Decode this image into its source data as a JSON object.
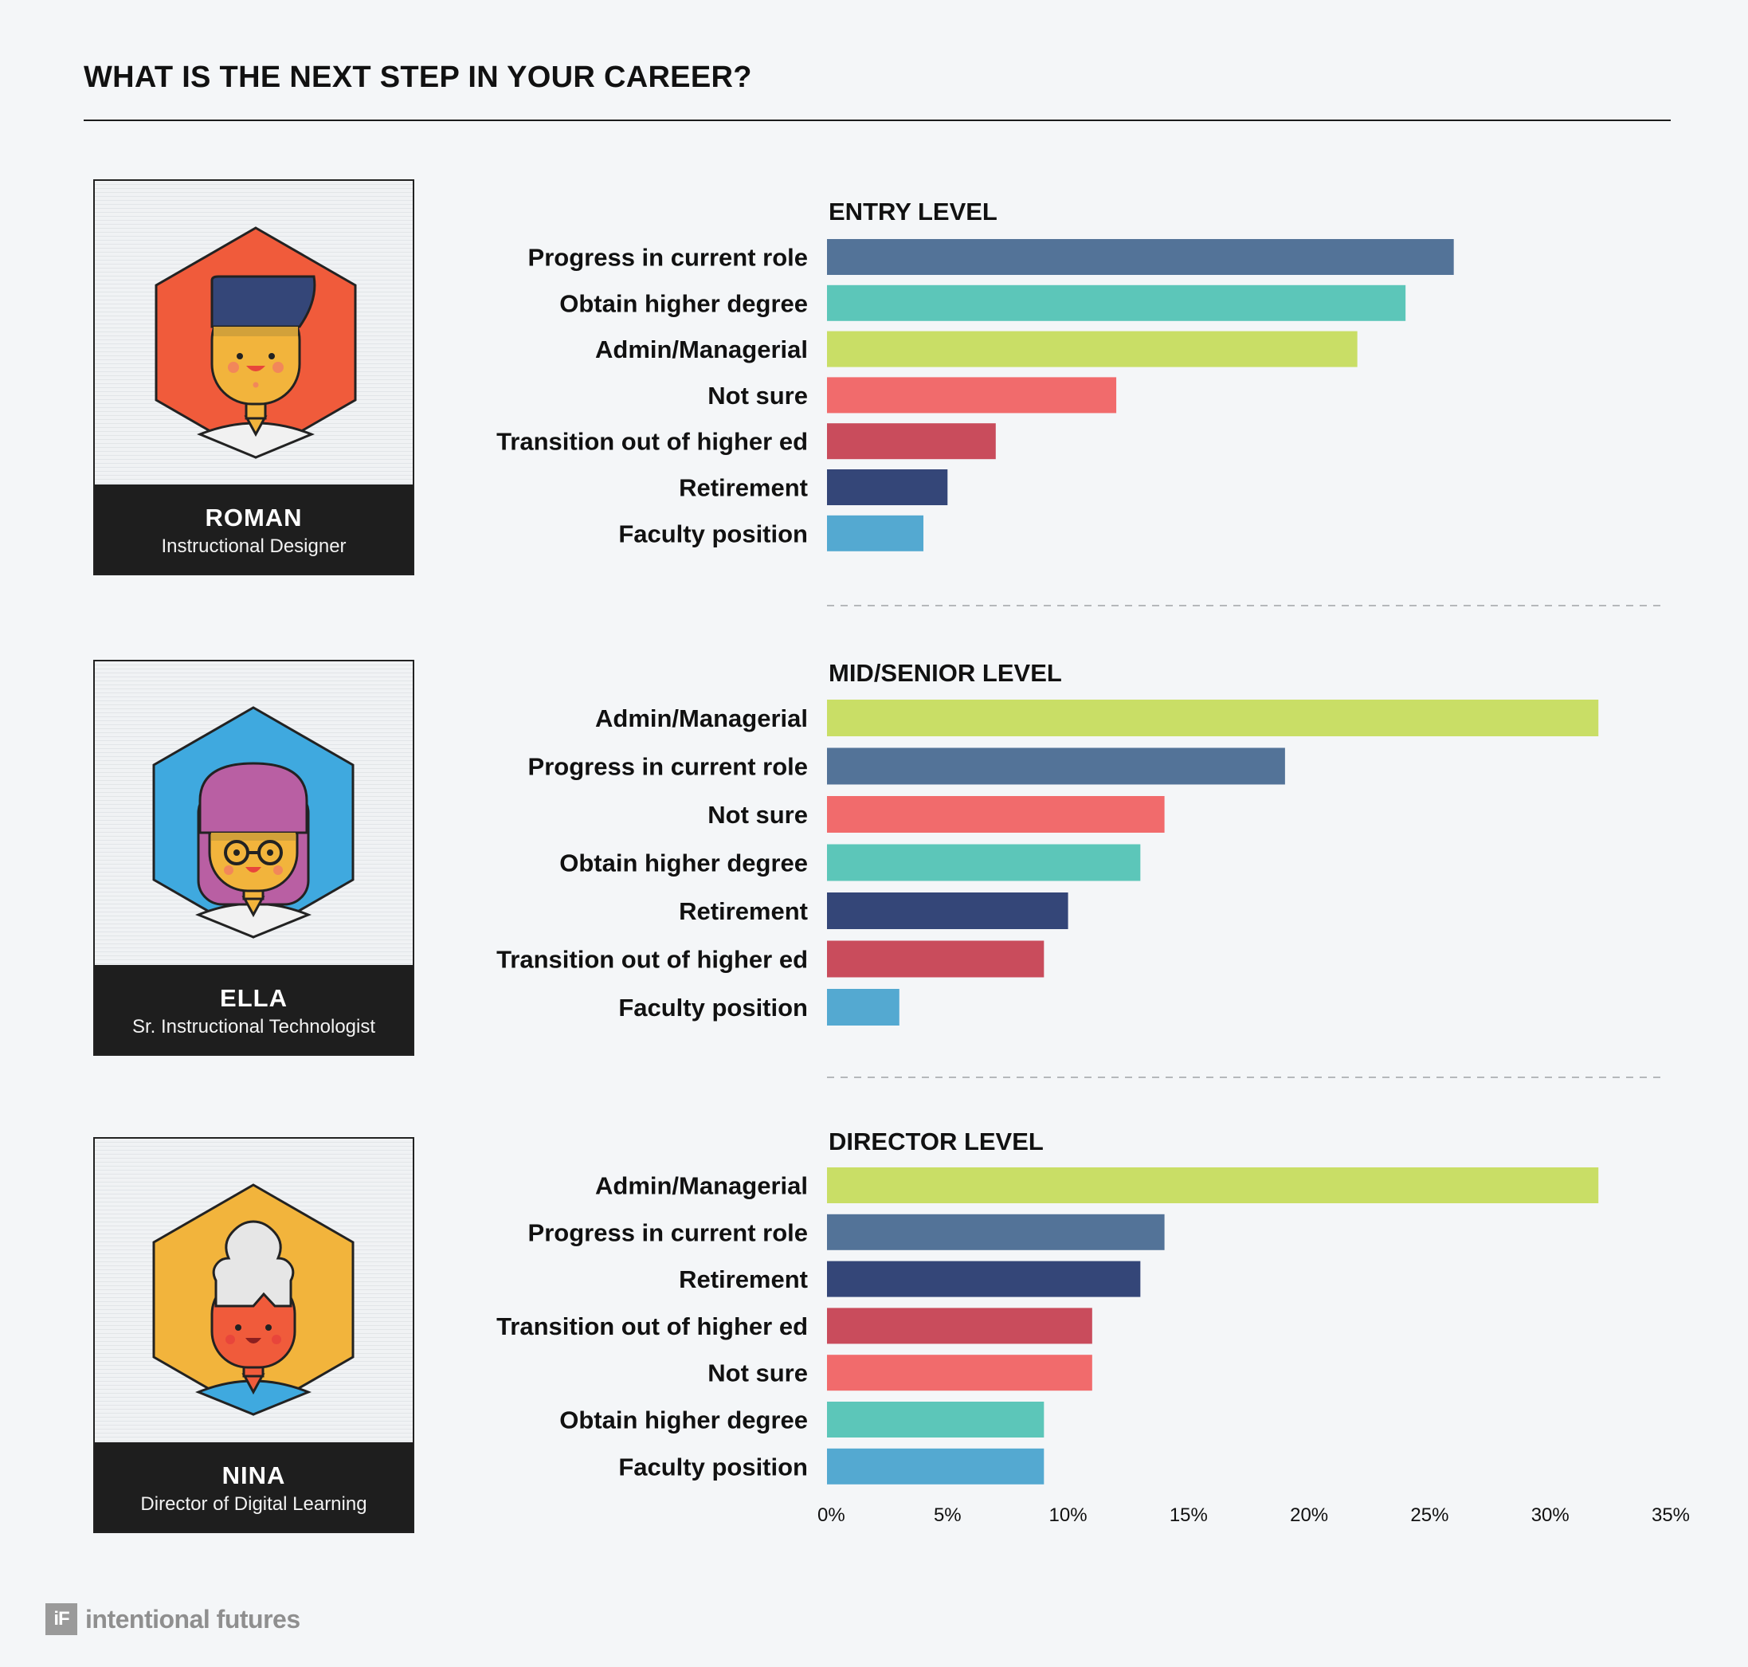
{
  "header": {
    "title": "WHAT IS THE NEXT STEP IN YOUR CAREER?"
  },
  "personas": [
    {
      "name": "ROMAN",
      "role": "Instructional Designer",
      "hex_color": "#f05b3b",
      "icon": "man-avatar-icon"
    },
    {
      "name": "ELLA",
      "role": "Sr. Instructional Technologist",
      "hex_color": "#3fa9df",
      "icon": "woman-with-glasses-avatar-icon"
    },
    {
      "name": "NINA",
      "role": "Director of Digital Learning",
      "hex_color": "#f2b43c",
      "icon": "woman-with-white-hair-avatar-icon"
    }
  ],
  "chart_data": [
    {
      "type": "bar",
      "orientation": "horizontal",
      "title": "ENTRY LEVEL",
      "categories": [
        "Progress in current role",
        "Obtain higher degree",
        "Admin/Managerial",
        "Not sure",
        "Transition out of higher ed",
        "Retirement",
        "Faculty position"
      ],
      "values": [
        26,
        24,
        22,
        12,
        7,
        5,
        4
      ],
      "colors": [
        "#537398",
        "#5cc6b9",
        "#c9de66",
        "#f16b6c",
        "#c94c5c",
        "#344678",
        "#54a9d1"
      ]
    },
    {
      "type": "bar",
      "orientation": "horizontal",
      "title": "MID/SENIOR LEVEL",
      "categories": [
        "Admin/Managerial",
        "Progress in current role",
        "Not sure",
        "Obtain higher degree",
        "Retirement",
        "Transition out of higher ed",
        "Faculty position"
      ],
      "values": [
        32,
        19,
        14,
        13,
        10,
        9,
        3
      ],
      "colors": [
        "#c9de66",
        "#537398",
        "#f16b6c",
        "#5cc6b9",
        "#344678",
        "#c94c5c",
        "#54a9d1"
      ]
    },
    {
      "type": "bar",
      "orientation": "horizontal",
      "title": "DIRECTOR LEVEL",
      "categories": [
        "Admin/Managerial",
        "Progress in current role",
        "Retirement",
        "Transition out of higher ed",
        "Not sure",
        "Obtain higher degree",
        "Faculty position"
      ],
      "values": [
        32,
        14,
        13,
        11,
        11,
        9,
        9
      ],
      "colors": [
        "#c9de66",
        "#537398",
        "#344678",
        "#c94c5c",
        "#f16b6c",
        "#5cc6b9",
        "#54a9d1"
      ]
    }
  ],
  "x_axis": {
    "xlim": [
      0,
      35
    ],
    "ticks": [
      0,
      5,
      10,
      15,
      20,
      25,
      30,
      35
    ],
    "tick_labels": [
      "0%",
      "5%",
      "10%",
      "15%",
      "20%",
      "25%",
      "30%",
      "35%"
    ]
  },
  "footer": {
    "logo_mark": "iF",
    "brand": "intentional futures"
  }
}
